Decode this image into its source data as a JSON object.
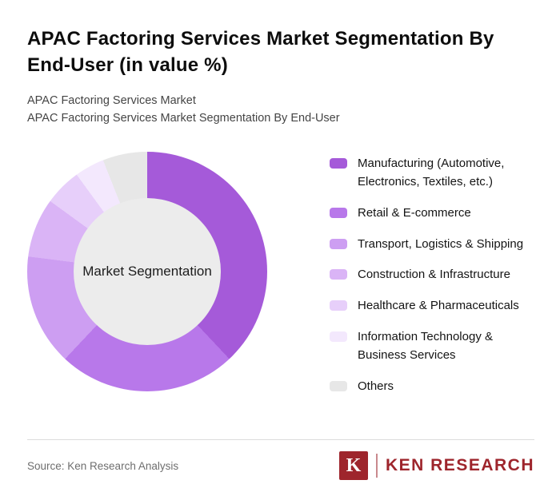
{
  "page": {
    "title": "APAC Factoring Services Market Segmentation By End-User (in value %)",
    "subtitle_line1": "APAC Factoring Services Market",
    "subtitle_line2": "APAC Factoring Services Market Segmentation By End-User",
    "source": "Source: Ken Research Analysis"
  },
  "logo": {
    "letter": "K",
    "text": "KEN RESEARCH",
    "brand_color": "#9e252c"
  },
  "chart_data": {
    "type": "pie",
    "donut": true,
    "title": "APAC Factoring Services Market Segmentation By End-User (in value %)",
    "center_label": "Market Segmentation",
    "center_color": "#ececec",
    "start_angle_deg": 0,
    "direction": "clockwise",
    "legend_position": "right",
    "segments": [
      {
        "label": "Manufacturing (Automotive, Electronics, Textiles, etc.)",
        "value": 38,
        "color": "#a55ad9"
      },
      {
        "label": "Retail & E-commerce",
        "value": 24,
        "color": "#b878ea"
      },
      {
        "label": "Transport, Logistics & Shipping",
        "value": 15,
        "color": "#cd9ef2"
      },
      {
        "label": "Construction & Infrastructure",
        "value": 8,
        "color": "#dab4f6"
      },
      {
        "label": "Healthcare & Pharmaceuticals",
        "value": 5,
        "color": "#e7cffa"
      },
      {
        "label": "Information Technology & Business Services",
        "value": 4,
        "color": "#f3e8fd"
      },
      {
        "label": "Others",
        "value": 6,
        "color": "#e7e7e7"
      }
    ]
  }
}
